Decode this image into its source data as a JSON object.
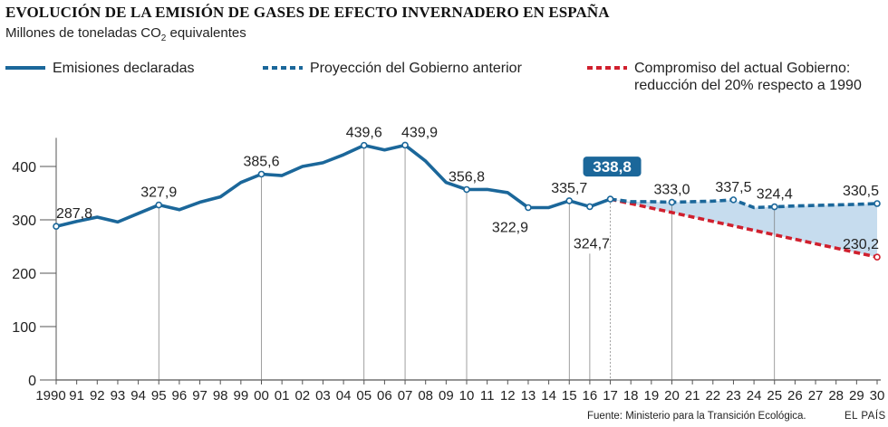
{
  "header": {
    "title": "EVOLUCIÓN DE LA EMISIÓN DE GASES DE EFECTO INVERNADERO EN ESPAÑA",
    "subtitle_pre": "Millones de toneladas CO",
    "subtitle_sub": "2",
    "subtitle_post": " equivalentes"
  },
  "legend": [
    {
      "label": "Emisiones declaradas",
      "color": "#1b679a",
      "style": "solid"
    },
    {
      "label": "Proyección del Gobierno anterior",
      "color": "#1b679a",
      "style": "dashed"
    },
    {
      "label": "Compromiso del actual Gobierno: reducción del 20% respecto a 1990",
      "label_line1": "Compromiso del actual Gobierno:",
      "label_line2": "reducción del 20% respecto a 1990",
      "color": "#d0202e",
      "style": "dashed"
    }
  ],
  "footer": {
    "source": "Fuente: Ministerio para la Transición Ecológica.",
    "brand": "EL PAÍS"
  },
  "chart_data": {
    "type": "line",
    "xlim": [
      1990,
      2030
    ],
    "ylim": [
      0,
      440
    ],
    "yticks": [
      0,
      100,
      200,
      300,
      400
    ],
    "x_tick_labels": [
      "1990",
      "91",
      "92",
      "93",
      "94",
      "95",
      "96",
      "97",
      "98",
      "99",
      "00",
      "01",
      "02",
      "03",
      "04",
      "05",
      "06",
      "07",
      "08",
      "09",
      "10",
      "11",
      "12",
      "13",
      "14",
      "15",
      "16",
      "17",
      "18",
      "19",
      "20",
      "21",
      "22",
      "23",
      "24",
      "25",
      "26",
      "27",
      "28",
      "29",
      "30"
    ],
    "grid": false,
    "fill_color": "#c6dcee",
    "series": [
      {
        "name": "Emisiones declaradas",
        "color": "#1b679a",
        "style": "solid",
        "x": [
          1990,
          1991,
          1992,
          1993,
          1994,
          1995,
          1996,
          1997,
          1998,
          1999,
          2000,
          2001,
          2002,
          2003,
          2004,
          2005,
          2006,
          2007,
          2008,
          2009,
          2010,
          2011,
          2012,
          2013,
          2014,
          2015,
          2016,
          2017
        ],
        "y": [
          287.8,
          297,
          305,
          296,
          312,
          327.9,
          319,
          333,
          343,
          370,
          385.6,
          383,
          400,
          407,
          422,
          439.6,
          431,
          439.9,
          410,
          370,
          356.8,
          357,
          351,
          322.9,
          323,
          335.7,
          324.7,
          338.8
        ]
      },
      {
        "name": "Proyección del Gobierno anterior",
        "color": "#1b679a",
        "style": "dashed",
        "x": [
          2017,
          2018,
          2019,
          2020,
          2021,
          2022,
          2023,
          2024,
          2025,
          2026,
          2027,
          2028,
          2029,
          2030
        ],
        "y": [
          338.8,
          334,
          334,
          333.0,
          334,
          335,
          337.5,
          323,
          324.4,
          326,
          327,
          328,
          329,
          330.5
        ]
      },
      {
        "name": "Compromiso del actual Gobierno: reducción del 20% respecto a 1990",
        "color": "#d0202e",
        "style": "dashed",
        "x": [
          2017,
          2030
        ],
        "y": [
          338.8,
          230.2
        ]
      }
    ],
    "annotations": [
      {
        "x": 1990,
        "y": 287.8,
        "label": "287,8",
        "pos": "above",
        "dot": true
      },
      {
        "x": 1995,
        "y": 327.9,
        "label": "327,9",
        "pos": "above",
        "dot": true,
        "drop": true
      },
      {
        "x": 2000,
        "y": 385.6,
        "label": "385,6",
        "pos": "above",
        "dot": true,
        "drop": true
      },
      {
        "x": 2005,
        "y": 439.6,
        "label": "439,6",
        "pos": "above",
        "dot": true,
        "drop": true
      },
      {
        "x": 2007,
        "y": 439.9,
        "label": "439,9",
        "pos": "above-right",
        "dot": true,
        "drop": true
      },
      {
        "x": 2010,
        "y": 356.8,
        "label": "356,8",
        "pos": "above",
        "dot": true,
        "drop": true
      },
      {
        "x": 2013,
        "y": 322.9,
        "label": "322,9",
        "pos": "below-left",
        "dot": true
      },
      {
        "x": 2015,
        "y": 335.7,
        "label": "335,7",
        "pos": "above",
        "dot": true,
        "drop": true
      },
      {
        "x": 2016,
        "y": 324.7,
        "label": "324,7",
        "pos": "below-far",
        "dot": true,
        "drop": true
      },
      {
        "x": 2017,
        "y": 338.8,
        "label": "338,8",
        "pos": "badge",
        "dot": true,
        "drop": true,
        "dotted": true
      },
      {
        "x": 2020,
        "y": 333.0,
        "label": "333,0",
        "pos": "above",
        "dot": true,
        "drop": true
      },
      {
        "x": 2023,
        "y": 337.5,
        "label": "337,5",
        "pos": "above",
        "dot": true
      },
      {
        "x": 2025,
        "y": 324.4,
        "label": "324,4",
        "pos": "above",
        "dot": true,
        "drop": true
      },
      {
        "x": 2030,
        "y": 330.5,
        "label": "330,5",
        "pos": "above-left",
        "dot": true
      },
      {
        "x": 2030,
        "y": 230.2,
        "label": "230,2",
        "pos": "above-left",
        "dot": true,
        "red": true
      }
    ]
  }
}
